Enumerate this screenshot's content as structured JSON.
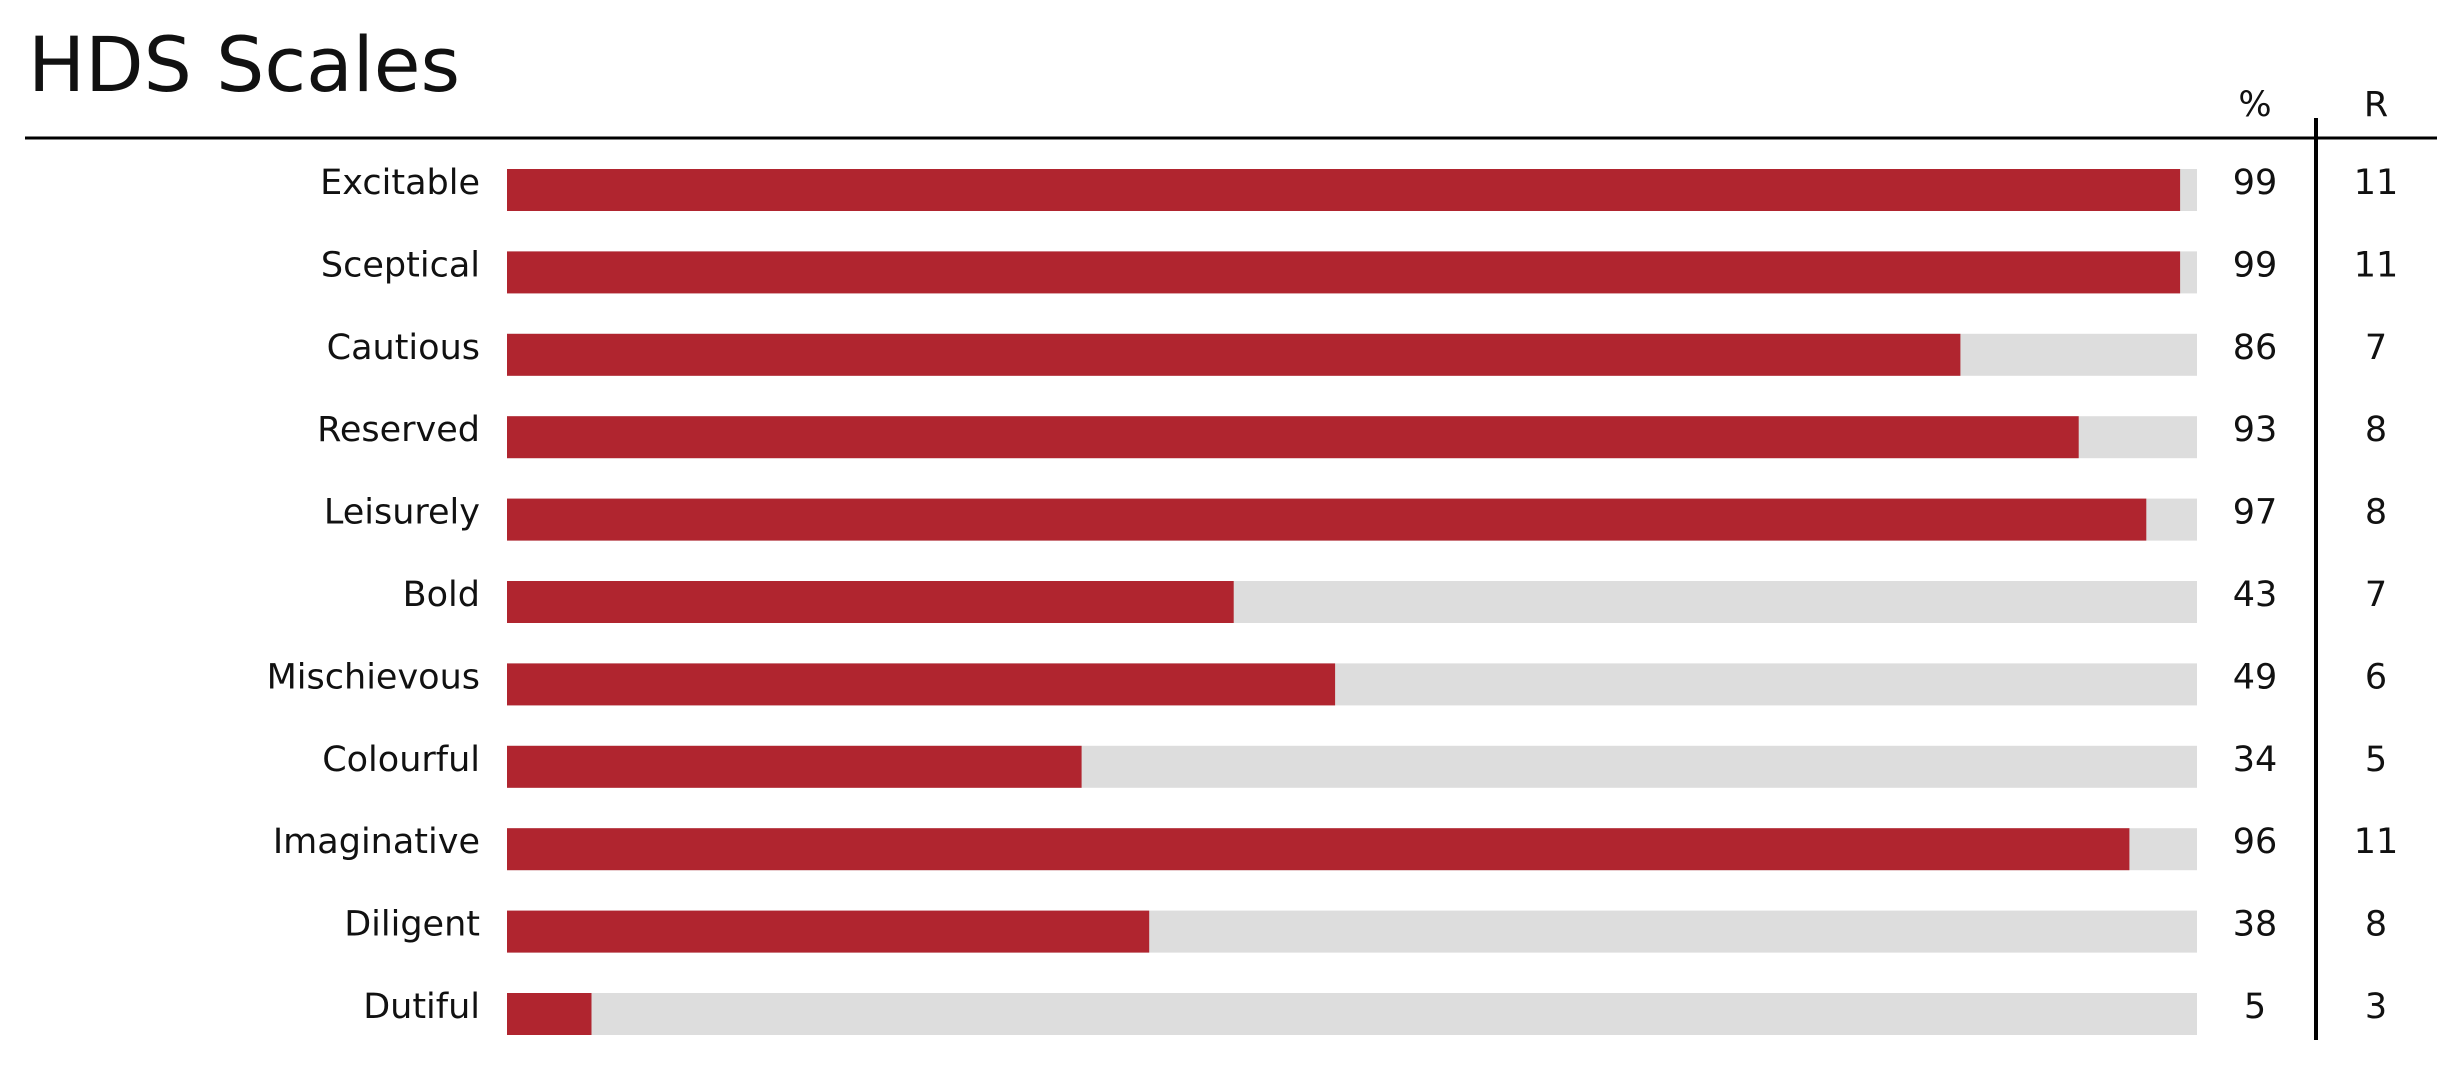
{
  "chart_data": {
    "type": "bar",
    "orientation": "horizontal",
    "title": "HDS Scales",
    "categories": [
      "Excitable",
      "Sceptical",
      "Cautious",
      "Reserved",
      "Leisurely",
      "Bold",
      "Mischievous",
      "Colourful",
      "Imaginative",
      "Diligent",
      "Dutiful"
    ],
    "values": [
      99,
      99,
      86,
      93,
      97,
      43,
      49,
      34,
      96,
      38,
      5
    ],
    "color": "#b0252f",
    "track_color": "#dddddd",
    "xlim": [
      0,
      100
    ],
    "value_header": "%",
    "r_header": "R",
    "r_values": [
      11,
      11,
      7,
      8,
      8,
      7,
      6,
      5,
      11,
      8,
      3
    ]
  }
}
